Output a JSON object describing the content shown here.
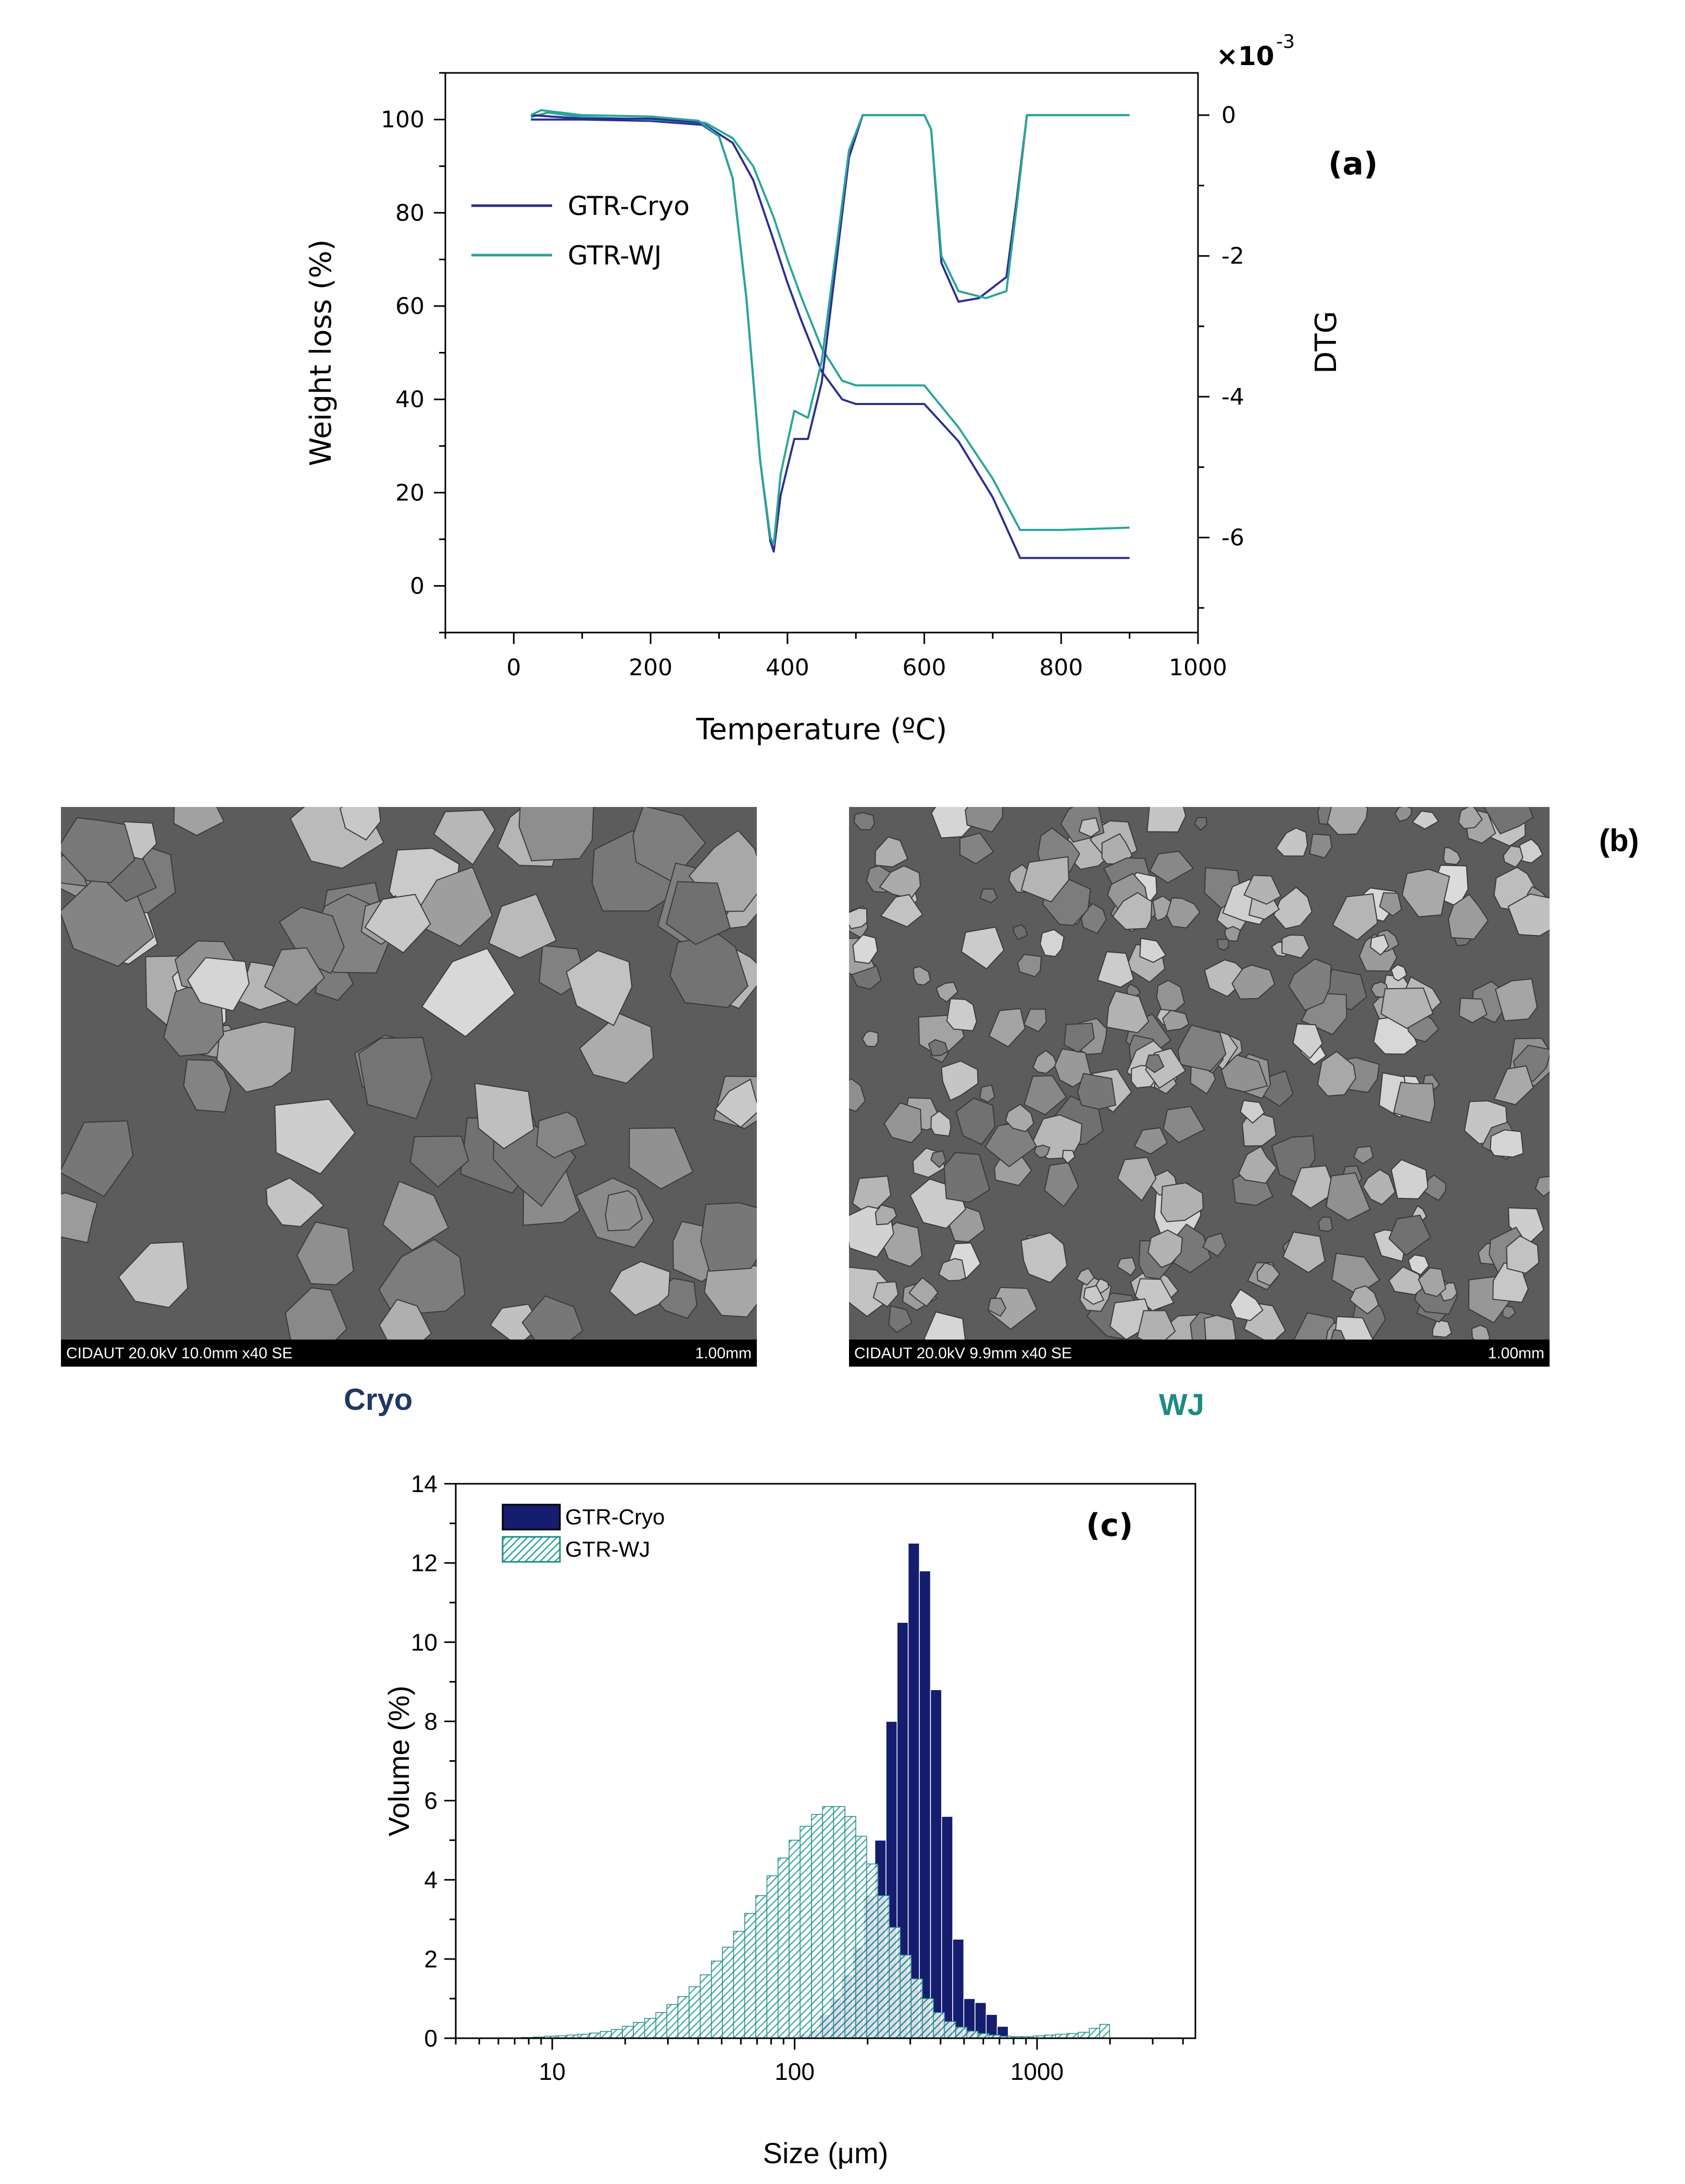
{
  "chart_data": [
    {
      "type": "line",
      "panel_label": "(a)",
      "xlabel": "Temperature (ºC)",
      "ylabel_left": "Weight loss (%)",
      "ylabel_right": "DTG",
      "right_axis_multiplier": "×10",
      "right_axis_exponent": "-3",
      "xlim": [
        -100,
        1000
      ],
      "ylim_left": [
        -10,
        110
      ],
      "ylim_right": [
        -7.35,
        0.6
      ],
      "x_ticks": [
        0,
        200,
        400,
        600,
        800,
        1000
      ],
      "y_ticks_left": [
        0,
        20,
        40,
        60,
        80,
        100
      ],
      "y_ticks_right": [
        0,
        -2,
        -4,
        -6
      ],
      "legend": [
        "GTR-Cryo",
        "GTR-WJ"
      ],
      "legend_position": "upper-left",
      "colors": {
        "GTR-Cryo": "#2b2f8f",
        "GTR-WJ": "#2aa49a"
      },
      "series": [
        {
          "name": "GTR-Cryo",
          "kind": "weight",
          "x": [
            25,
            100,
            200,
            280,
            320,
            350,
            380,
            400,
            420,
            450,
            480,
            500,
            550,
            600,
            650,
            700,
            740,
            800,
            900
          ],
          "y": [
            100,
            100,
            99.7,
            98.8,
            95,
            87,
            74,
            65,
            57,
            46,
            40,
            39,
            39,
            39,
            31,
            19,
            6,
            6,
            6
          ]
        },
        {
          "name": "GTR-WJ",
          "kind": "weight",
          "x": [
            25,
            50,
            100,
            200,
            280,
            320,
            350,
            380,
            400,
            420,
            450,
            480,
            500,
            550,
            600,
            650,
            700,
            740,
            800,
            900
          ],
          "y": [
            100.5,
            101.5,
            100.5,
            100,
            99.3,
            96,
            90,
            79,
            70,
            62,
            51,
            44,
            43,
            43,
            43,
            34,
            23,
            12,
            12,
            12.5
          ]
        },
        {
          "name": "GTR-Cryo",
          "kind": "dtg",
          "x": [
            25,
            100,
            200,
            270,
            300,
            320,
            340,
            360,
            375,
            380,
            390,
            410,
            430,
            450,
            470,
            490,
            510,
            600,
            610,
            625,
            650,
            680,
            720,
            735,
            750,
            900
          ],
          "y": [
            0,
            -0.05,
            -0.05,
            -0.1,
            -0.3,
            -0.9,
            -2.6,
            -4.9,
            -6.05,
            -6.2,
            -5.4,
            -4.6,
            -4.6,
            -3.8,
            -2.2,
            -0.6,
            0,
            0,
            -0.2,
            -2.1,
            -2.65,
            -2.6,
            -2.3,
            -1.2,
            0,
            0
          ]
        },
        {
          "name": "GTR-WJ",
          "kind": "dtg",
          "x": [
            25,
            40,
            100,
            200,
            270,
            300,
            320,
            340,
            360,
            375,
            380,
            390,
            410,
            430,
            450,
            470,
            490,
            510,
            600,
            610,
            625,
            650,
            690,
            720,
            735,
            750,
            900
          ],
          "y": [
            0,
            0.07,
            0,
            -0.02,
            -0.08,
            -0.3,
            -0.9,
            -2.6,
            -4.9,
            -6.0,
            -6.1,
            -5.1,
            -4.2,
            -4.3,
            -3.5,
            -2.0,
            -0.5,
            0,
            0,
            -0.2,
            -2.0,
            -2.5,
            -2.6,
            -2.5,
            -1.3,
            0,
            0
          ]
        }
      ]
    },
    {
      "type": "bar",
      "panel_label": "(c)",
      "xlabel": "Size (μm)",
      "ylabel": "Volume (%)",
      "x_scale": "log",
      "xlim": [
        4,
        4500
      ],
      "ylim": [
        0,
        14
      ],
      "x_ticks": [
        "10",
        "100",
        "1000"
      ],
      "y_ticks": [
        0,
        2,
        4,
        6,
        8,
        10,
        12,
        14
      ],
      "legend": [
        "GTR-Cryo",
        "GTR-WJ"
      ],
      "legend_position": "top-left",
      "colors": {
        "GTR-Cryo": "#141d6e",
        "GTR-WJ": "#2aa49a"
      },
      "series": [
        {
          "name": "GTR-Cryo",
          "x": [
            108,
            120,
            133,
            148,
            165,
            183,
            203,
            226,
            251,
            279,
            310,
            345,
            383,
            426,
            473,
            526,
            585,
            650,
            722
          ],
          "values": [
            0.1,
            0.2,
            0.6,
            1.0,
            1.6,
            2.3,
            3.6,
            5.0,
            8.0,
            10.5,
            12.5,
            11.8,
            8.8,
            5.6,
            2.5,
            1.0,
            0.9,
            0.6,
            0.3
          ]
        },
        {
          "name": "GTR-WJ",
          "x": [
            6.4,
            7.1,
            7.9,
            8.8,
            9.8,
            10.9,
            12.1,
            13.5,
            15.0,
            16.6,
            18.5,
            20.5,
            22.8,
            25.4,
            28.2,
            31.3,
            34.8,
            38.7,
            43.0,
            47.8,
            53.1,
            59.0,
            65.6,
            72.9,
            81.0,
            90.0,
            100,
            111,
            124,
            137,
            153,
            170,
            188,
            209,
            233,
            259,
            287,
            319,
            355,
            394,
            438,
            487,
            541,
            602,
            668,
            743,
            825,
            917,
            1020,
            1130,
            1260,
            1400,
            1560,
            1730,
            1900
          ],
          "values": [
            0.01,
            0.01,
            0.02,
            0.03,
            0.05,
            0.06,
            0.08,
            0.1,
            0.13,
            0.17,
            0.22,
            0.3,
            0.4,
            0.5,
            0.65,
            0.85,
            1.05,
            1.3,
            1.6,
            1.95,
            2.3,
            2.7,
            3.15,
            3.6,
            4.1,
            4.55,
            5.0,
            5.35,
            5.65,
            5.85,
            5.85,
            5.6,
            5.1,
            4.4,
            3.6,
            2.8,
            2.1,
            1.5,
            1.0,
            0.65,
            0.42,
            0.28,
            0.18,
            0.12,
            0.08,
            0.05,
            0.04,
            0.04,
            0.06,
            0.08,
            0.1,
            0.12,
            0.15,
            0.25,
            0.35
          ]
        }
      ]
    }
  ],
  "panel_b": {
    "label": "(b)",
    "left": {
      "caption": "Cryo",
      "info": "CIDAUT 20.0kV 10.0mm x40 SE",
      "scale": "1.00mm",
      "caption_color": "#1f3864"
    },
    "right": {
      "caption": "WJ",
      "info": "CIDAUT 20.0kV 9.9mm x40 SE",
      "scale": "1.00mm",
      "caption_color": "#1f8a86"
    }
  }
}
